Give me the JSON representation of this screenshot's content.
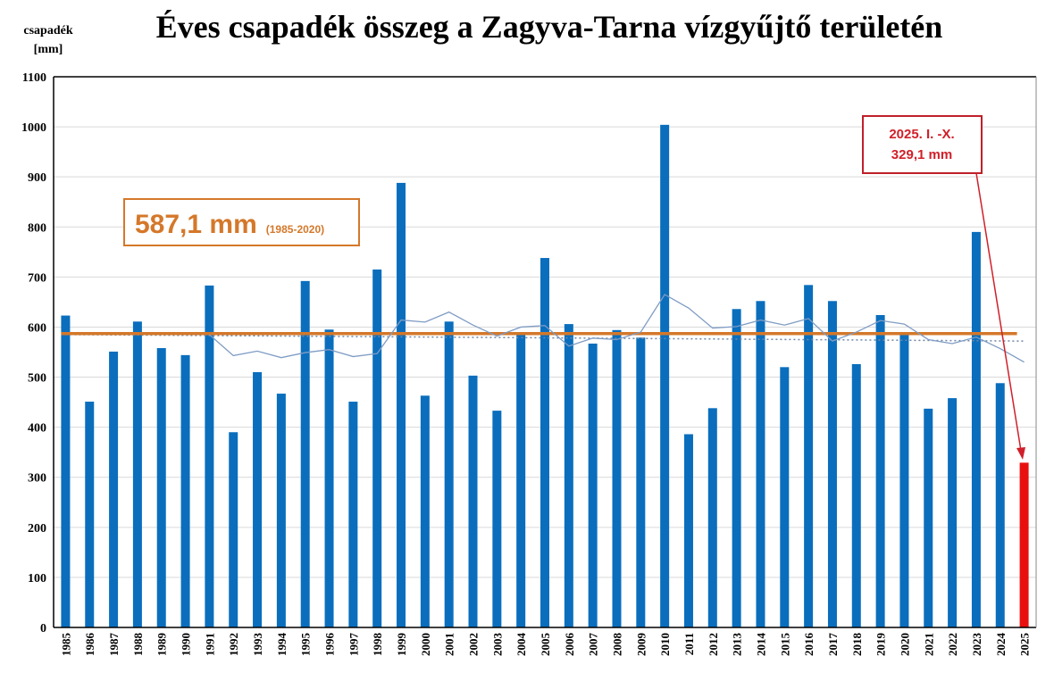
{
  "chart_data": {
    "type": "bar",
    "title": "Éves csapadék összeg a Zagyva-Tarna vízgyűjtő területén",
    "ylabel": [
      "csapadék",
      "[mm]"
    ],
    "xlabel": "",
    "ylim": [
      0,
      1100
    ],
    "yticks": [
      0,
      100,
      200,
      300,
      400,
      500,
      600,
      700,
      800,
      900,
      1000,
      1100
    ],
    "grid": true,
    "categories": [
      "1985",
      "1986",
      "1987",
      "1988",
      "1989",
      "1990",
      "1991",
      "1992",
      "1993",
      "1994",
      "1995",
      "1996",
      "1997",
      "1998",
      "1999",
      "2000",
      "2001",
      "2002",
      "2003",
      "2004",
      "2005",
      "2006",
      "2007",
      "2008",
      "2009",
      "2010",
      "2011",
      "2012",
      "2013",
      "2014",
      "2015",
      "2016",
      "2017",
      "2018",
      "2019",
      "2020",
      "2021",
      "2022",
      "2023",
      "2024",
      "2025"
    ],
    "values": [
      623,
      451,
      551,
      611,
      558,
      544,
      683,
      390,
      510,
      467,
      692,
      595,
      451,
      715,
      888,
      463,
      611,
      503,
      433,
      586,
      738,
      606,
      567,
      594,
      579,
      1004,
      386,
      438,
      636,
      652,
      520,
      684,
      652,
      526,
      624,
      586,
      437,
      458,
      790,
      488,
      329.1
    ],
    "bar_color": "#0a6ebd",
    "highlight_bar": {
      "category": "2025",
      "color": "#e8100f"
    },
    "moving_average": {
      "color": "#7f9cc4",
      "categories": [
        "1991",
        "1992",
        "1993",
        "1994",
        "1995",
        "1996",
        "1997",
        "1998",
        "1999",
        "2000",
        "2001",
        "2002",
        "2003",
        "2004",
        "2005",
        "2006",
        "2007",
        "2008",
        "2009",
        "2010",
        "2011",
        "2012",
        "2013",
        "2014",
        "2015",
        "2016",
        "2017",
        "2018",
        "2019",
        "2020",
        "2021",
        "2022",
        "2023",
        "2024",
        "2025"
      ],
      "values": [
        585,
        543,
        552,
        539,
        549,
        555,
        541,
        547,
        614,
        610,
        630,
        604,
        582,
        600,
        603,
        562,
        578,
        575,
        590,
        665,
        638,
        598,
        601,
        614,
        604,
        617,
        572,
        590,
        613,
        606,
        575,
        567,
        580,
        557,
        530
      ]
    },
    "trend_line": {
      "color": "#6f86a6",
      "start": 585,
      "end": 572
    },
    "mean_line": {
      "value": 587.1,
      "color": "#d4782a"
    },
    "annotations": {
      "mean_label": "587,1 mm",
      "mean_period": "(1985-2020)",
      "current_line1": "2025. I. -X.",
      "current_line2": "329,1 mm"
    }
  }
}
